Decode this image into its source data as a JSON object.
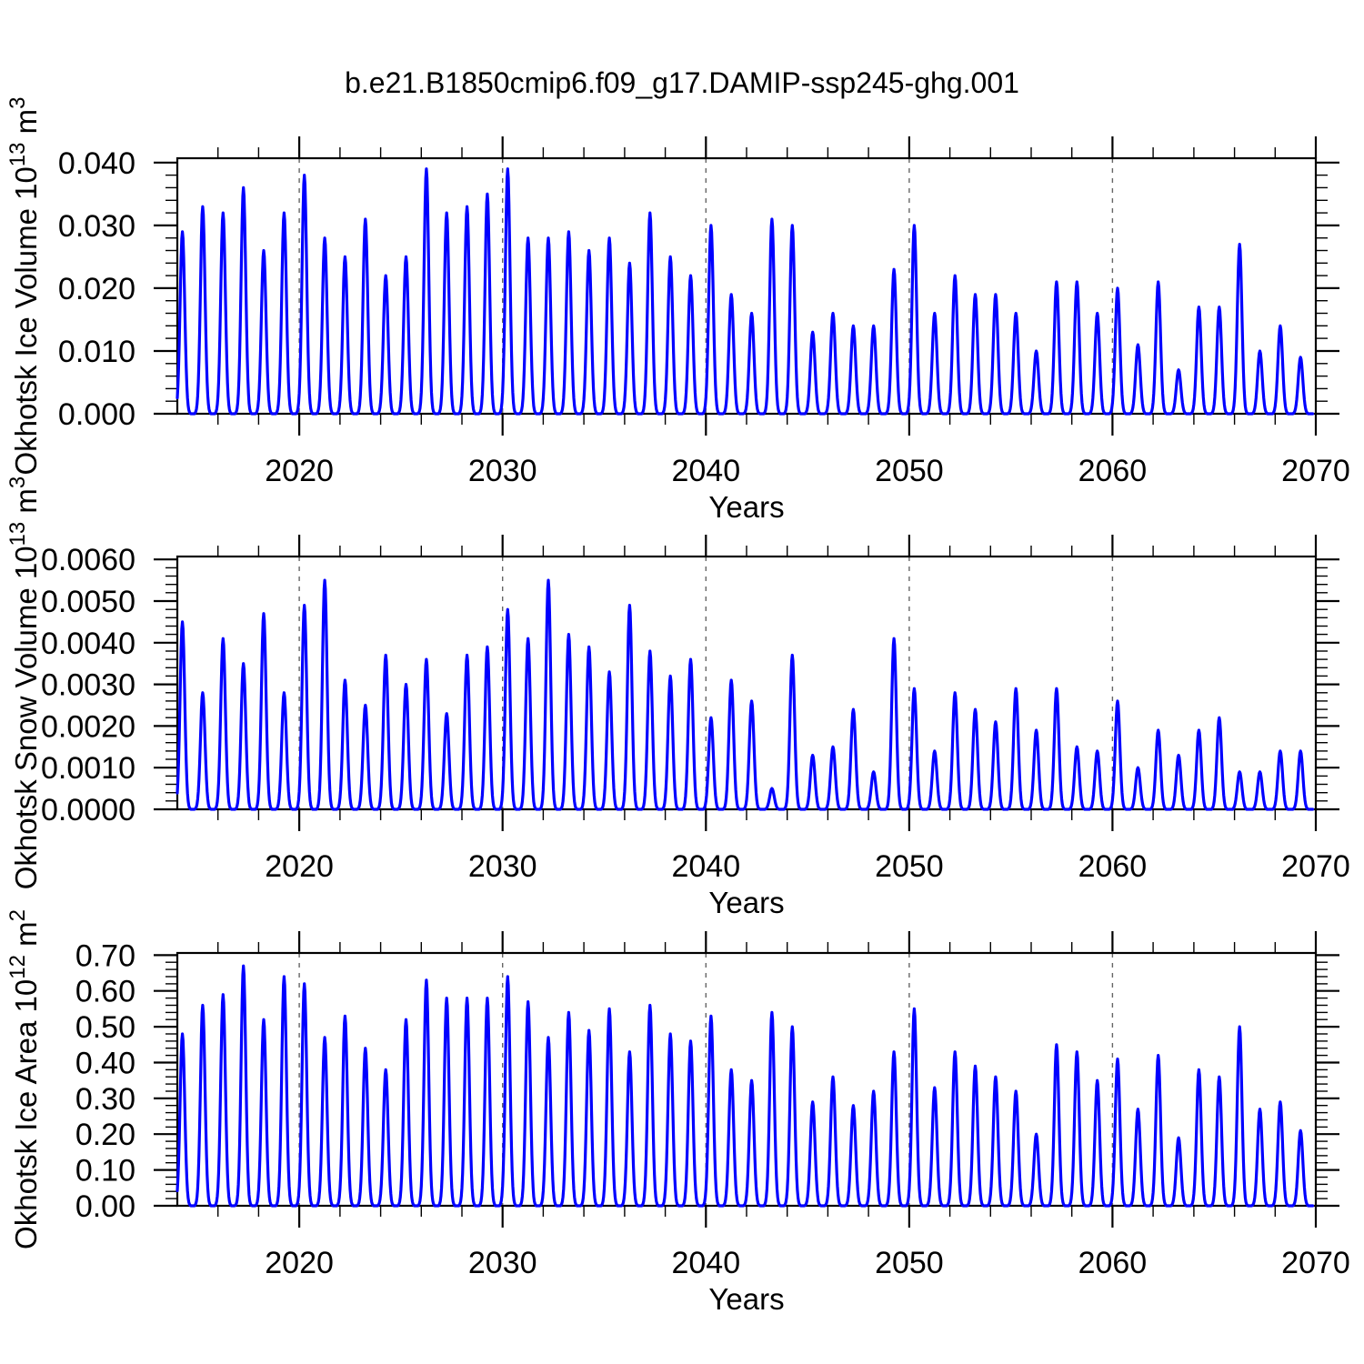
{
  "title": "b.e21.B1850cmip6.f09_g17.DAMIP-ssp245-ghg.001",
  "chart_data": {
    "type": "line",
    "title": "b.e21.B1850cmip6.f09_g17.DAMIP-ssp245-ghg.001",
    "description": "Three stacked time-series panels of monthly Sea of Okhotsk sea-ice diagnostics; each year the curve rises from zero to a late-winter peak and returns to zero in summer.",
    "x_axis": {
      "label": "Years",
      "range": [
        2014,
        2070
      ],
      "major_ticks": [
        2020,
        2030,
        2040,
        2050,
        2060,
        2070
      ],
      "major_tick_labels": [
        "2020",
        "2030",
        "2040",
        "2050",
        "2060",
        "2070"
      ],
      "minor_step": 2,
      "dashed_gridlines": [
        2020,
        2030,
        2040,
        2050,
        2060
      ],
      "peak_years": [
        2014,
        2015,
        2016,
        2017,
        2018,
        2019,
        2020,
        2021,
        2022,
        2023,
        2024,
        2025,
        2026,
        2027,
        2028,
        2029,
        2030,
        2031,
        2032,
        2033,
        2034,
        2035,
        2036,
        2037,
        2038,
        2039,
        2040,
        2041,
        2042,
        2043,
        2044,
        2045,
        2046,
        2047,
        2048,
        2049,
        2050,
        2051,
        2052,
        2053,
        2054,
        2055,
        2056,
        2057,
        2058,
        2059,
        2060,
        2061,
        2062,
        2063,
        2064,
        2065,
        2066,
        2067,
        2068,
        2069
      ]
    },
    "seasonal_shape": {
      "peak_month_offset_years": 0.25,
      "gaussian_width_years": 0.16,
      "data_range": [
        2014.0,
        2069.85
      ]
    },
    "panels": [
      {
        "name": "ice-volume",
        "ylabel": "Okhotsk Ice Volume 10^13 m^3",
        "ylabel_segments": [
          {
            "t": "Okhotsk Ice Volume 10"
          },
          {
            "t": "13",
            "sup": true
          },
          {
            "t": " m"
          },
          {
            "t": "3",
            "sup": true
          }
        ],
        "ylim": [
          0,
          0.0407
        ],
        "y_major_ticks": [
          {
            "v": 0.0,
            "label": "0.000"
          },
          {
            "v": 0.01,
            "label": "0.010"
          },
          {
            "v": 0.02,
            "label": "0.020"
          },
          {
            "v": 0.03,
            "label": "0.030"
          },
          {
            "v": 0.04,
            "label": "0.040"
          }
        ],
        "y_minor_step": 0.002,
        "series": {
          "name": "Okhotsk ice volume",
          "color": "#0000ff",
          "annual_peak_values": [
            0.029,
            0.033,
            0.032,
            0.036,
            0.026,
            0.032,
            0.038,
            0.028,
            0.025,
            0.031,
            0.022,
            0.025,
            0.039,
            0.032,
            0.033,
            0.035,
            0.039,
            0.028,
            0.028,
            0.029,
            0.026,
            0.028,
            0.024,
            0.032,
            0.025,
            0.022,
            0.03,
            0.019,
            0.016,
            0.031,
            0.03,
            0.013,
            0.016,
            0.014,
            0.014,
            0.023,
            0.03,
            0.016,
            0.022,
            0.019,
            0.019,
            0.016,
            0.01,
            0.021,
            0.021,
            0.016,
            0.02,
            0.011,
            0.021,
            0.007,
            0.017,
            0.017,
            0.027,
            0.01,
            0.014,
            0.009
          ]
        }
      },
      {
        "name": "snow-volume",
        "ylabel": "Okhotsk Snow Volume 10^13 m^3",
        "ylabel_segments": [
          {
            "t": "Okhotsk Snow Volume 10"
          },
          {
            "t": "13",
            "sup": true
          },
          {
            "t": " m"
          },
          {
            "t": "3",
            "sup": true
          }
        ],
        "ylim": [
          0,
          0.00607
        ],
        "y_major_ticks": [
          {
            "v": 0.0,
            "label": "0.0000"
          },
          {
            "v": 0.001,
            "label": "0.0010"
          },
          {
            "v": 0.002,
            "label": "0.0020"
          },
          {
            "v": 0.003,
            "label": "0.0030"
          },
          {
            "v": 0.004,
            "label": "0.0040"
          },
          {
            "v": 0.005,
            "label": "0.0050"
          },
          {
            "v": 0.006,
            "label": "0.0060"
          }
        ],
        "y_minor_step": 0.0002,
        "series": {
          "name": "Okhotsk snow volume",
          "color": "#0000ff",
          "annual_peak_values": [
            0.0045,
            0.0028,
            0.0041,
            0.0035,
            0.0047,
            0.0028,
            0.0049,
            0.0055,
            0.0031,
            0.0025,
            0.0037,
            0.003,
            0.0036,
            0.0023,
            0.0037,
            0.0039,
            0.0048,
            0.0041,
            0.0055,
            0.0042,
            0.0039,
            0.0033,
            0.0049,
            0.0038,
            0.0032,
            0.0036,
            0.0022,
            0.0031,
            0.0026,
            0.0005,
            0.0037,
            0.0013,
            0.0015,
            0.0024,
            0.0009,
            0.0041,
            0.0029,
            0.0014,
            0.0028,
            0.0024,
            0.0021,
            0.0029,
            0.0019,
            0.0029,
            0.0015,
            0.0014,
            0.0026,
            0.001,
            0.0019,
            0.0013,
            0.0019,
            0.0022,
            0.0009,
            0.0009,
            0.0014,
            0.0014
          ]
        }
      },
      {
        "name": "ice-area",
        "ylabel": "Okhotsk Ice Area 10^12 m^2",
        "ylabel_segments": [
          {
            "t": "Okhotsk Ice Area 10"
          },
          {
            "t": "12",
            "sup": true
          },
          {
            "t": " m"
          },
          {
            "t": "2",
            "sup": true
          }
        ],
        "ylim": [
          0,
          0.706
        ],
        "y_major_ticks": [
          {
            "v": 0.0,
            "label": "0.00"
          },
          {
            "v": 0.1,
            "label": "0.10"
          },
          {
            "v": 0.2,
            "label": "0.20"
          },
          {
            "v": 0.3,
            "label": "0.30"
          },
          {
            "v": 0.4,
            "label": "0.40"
          },
          {
            "v": 0.5,
            "label": "0.50"
          },
          {
            "v": 0.6,
            "label": "0.60"
          },
          {
            "v": 0.7,
            "label": "0.70"
          }
        ],
        "y_minor_step": 0.02,
        "series": {
          "name": "Okhotsk ice area",
          "color": "#0000ff",
          "annual_peak_values": [
            0.48,
            0.56,
            0.59,
            0.67,
            0.52,
            0.64,
            0.62,
            0.47,
            0.53,
            0.44,
            0.38,
            0.52,
            0.63,
            0.58,
            0.58,
            0.58,
            0.64,
            0.57,
            0.47,
            0.54,
            0.49,
            0.55,
            0.43,
            0.56,
            0.48,
            0.46,
            0.53,
            0.38,
            0.35,
            0.54,
            0.5,
            0.29,
            0.36,
            0.28,
            0.32,
            0.43,
            0.55,
            0.33,
            0.43,
            0.39,
            0.36,
            0.32,
            0.2,
            0.45,
            0.43,
            0.35,
            0.41,
            0.27,
            0.42,
            0.19,
            0.38,
            0.36,
            0.5,
            0.27,
            0.29,
            0.21
          ]
        }
      }
    ]
  }
}
